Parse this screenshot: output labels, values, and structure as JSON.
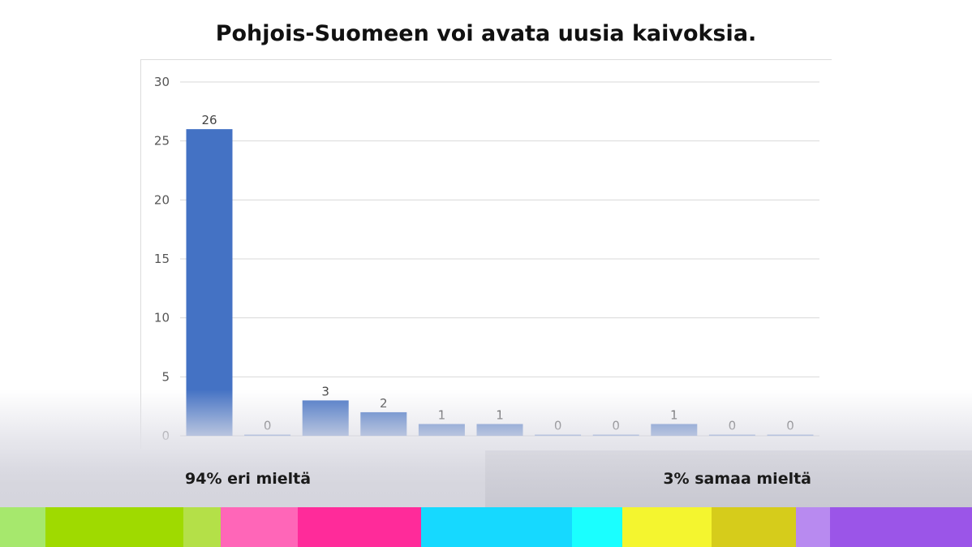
{
  "chart_data": {
    "type": "bar",
    "title": "Pohjois-Suomeen voi avata uusia kaivoksia.",
    "categories": [
      "",
      "",
      "",
      "",
      "",
      "",
      "",
      "",
      "",
      "",
      ""
    ],
    "values": [
      26,
      0,
      3,
      2,
      1,
      1,
      0,
      0,
      1,
      0,
      0
    ],
    "data_labels": [
      "26",
      "0",
      "3",
      "2",
      "1",
      "1",
      "0",
      "0",
      "1",
      "0",
      "0"
    ],
    "ylim": [
      0,
      30
    ],
    "yticks": [
      "0",
      "5",
      "10",
      "15",
      "20",
      "25",
      "30"
    ],
    "grid": true,
    "legend": "none",
    "bar_color": "#4472c4"
  },
  "summary": {
    "disagree_label": "94% eri mieltä",
    "agree_label": "3% samaa mieltä"
  },
  "colors": {
    "strip": [
      "#a6e86d",
      "#9fda00",
      "#b4e048",
      "#ff66b8",
      "#ff2b9a",
      "#16d9ff",
      "#1affff",
      "#f4f52f",
      "#d6cc1b",
      "#b88af0",
      "#9b55e8"
    ]
  }
}
